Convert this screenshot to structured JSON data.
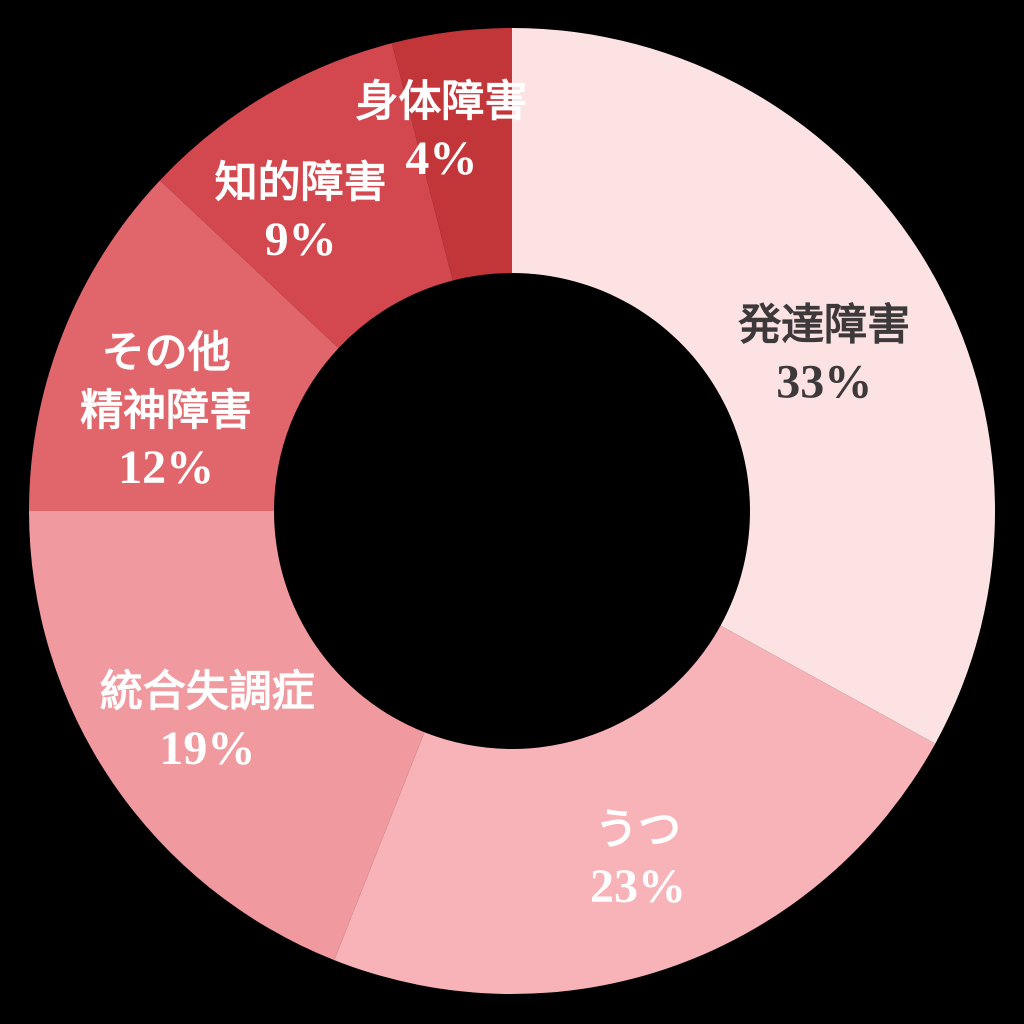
{
  "page": {
    "background": "#000000"
  },
  "chart_data": {
    "type": "pie",
    "subtype": "donut",
    "title": "",
    "legend": "none",
    "start_angle_deg": 0,
    "direction": "clockwise",
    "unit": "%",
    "categories": [
      "発達障害",
      "うつ",
      "統合失調症",
      "その他精神障害",
      "知的障害",
      "身体障害"
    ],
    "values": [
      33,
      23,
      19,
      12,
      9,
      4
    ],
    "segment_colors": [
      "#fde2e4",
      "#f7b3b7",
      "#f0999f",
      "#e0666c",
      "#d2484e",
      "#c23539"
    ],
    "label_text_colors": [
      "#3d393b",
      "#ffffff",
      "#ffffff",
      "#ffffff",
      "#ffffff",
      "#ffffff"
    ],
    "label_lines": [
      [
        "発達障害",
        "33%"
      ],
      [
        "うつ",
        "23%"
      ],
      [
        "統合失調症",
        "19%"
      ],
      [
        "その他",
        "精神障害",
        "12%"
      ],
      [
        "知的障害",
        "9%"
      ],
      [
        "身体障害",
        "4%"
      ]
    ]
  }
}
